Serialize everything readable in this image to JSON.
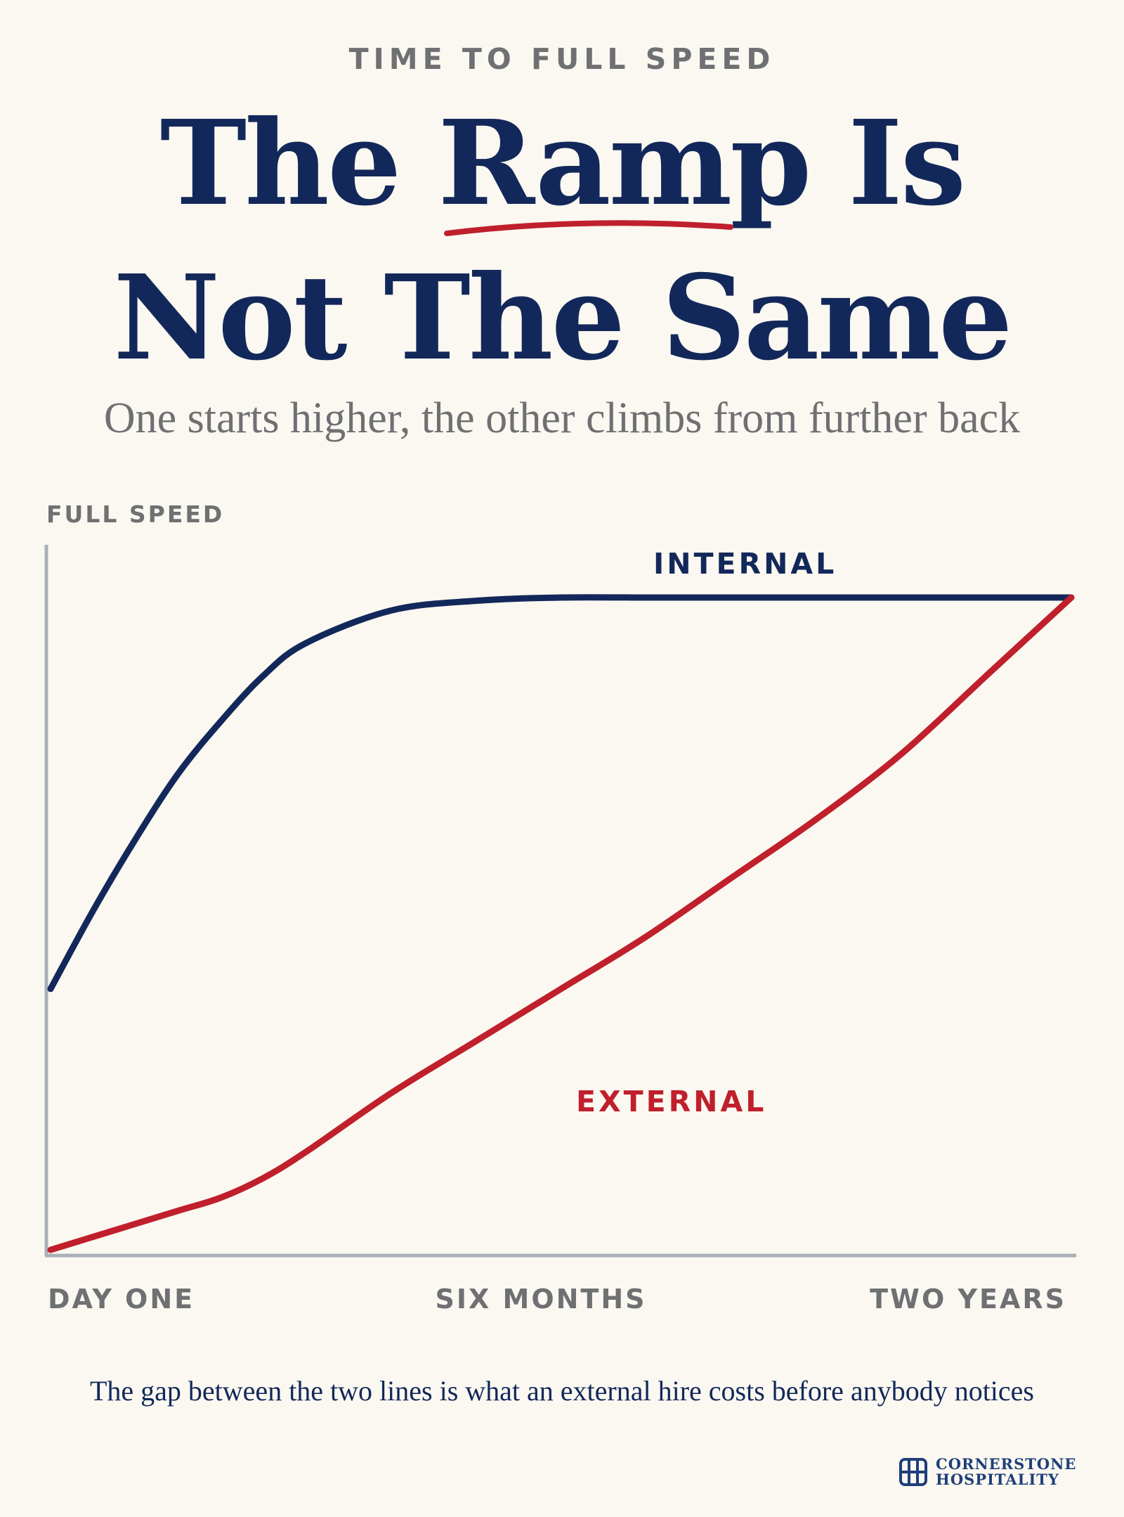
{
  "eyebrow": "TIME TO FULL SPEED",
  "headline": {
    "line1": "The Ramp Is",
    "line2": "Not The Same",
    "underline_color": "#c01f2c"
  },
  "subtitle": "One starts higher, the other climbs from further back",
  "footnote": "The gap between the two lines is what an external hire costs before anybody notices",
  "logo": {
    "line1": "CORNERSTONE",
    "line2": "HOSPITALITY",
    "icon": "cornerstone-logo-icon"
  },
  "colors": {
    "background": "#fbf8f1",
    "navy": "#13285a",
    "red": "#c01f2c",
    "axis": "#a9b0b8",
    "muted_text": "#6f7072"
  },
  "chart_data": {
    "type": "line",
    "title": "The Ramp Is Not The Same",
    "subtitle": "One starts higher, the other climbs from further back",
    "ylabel": "FULL SPEED",
    "xlabel": "",
    "x_ticks": [
      "DAY ONE",
      "SIX MONTHS",
      "TWO YEARS"
    ],
    "x_tick_positions": [
      0,
      6,
      24
    ],
    "xlim": [
      0,
      24
    ],
    "ylim": [
      0,
      100
    ],
    "grid": false,
    "legend": "inline labels",
    "x": [
      0,
      1,
      2,
      3,
      4,
      5,
      6,
      8,
      10,
      12,
      14,
      16,
      18,
      20,
      22,
      24
    ],
    "series": [
      {
        "name": "INTERNAL",
        "color": "#13285a",
        "values": [
          40,
          52,
          63,
          73,
          81,
          88,
          93,
          98,
          99.5,
          100,
          100,
          100,
          100,
          100,
          100,
          100
        ]
      },
      {
        "name": "EXTERNAL",
        "color": "#c01f2c",
        "values": [
          0,
          2,
          4,
          6,
          8,
          11,
          15,
          24,
          32,
          40,
          48,
          57,
          66,
          76,
          88,
          100
        ]
      }
    ]
  }
}
